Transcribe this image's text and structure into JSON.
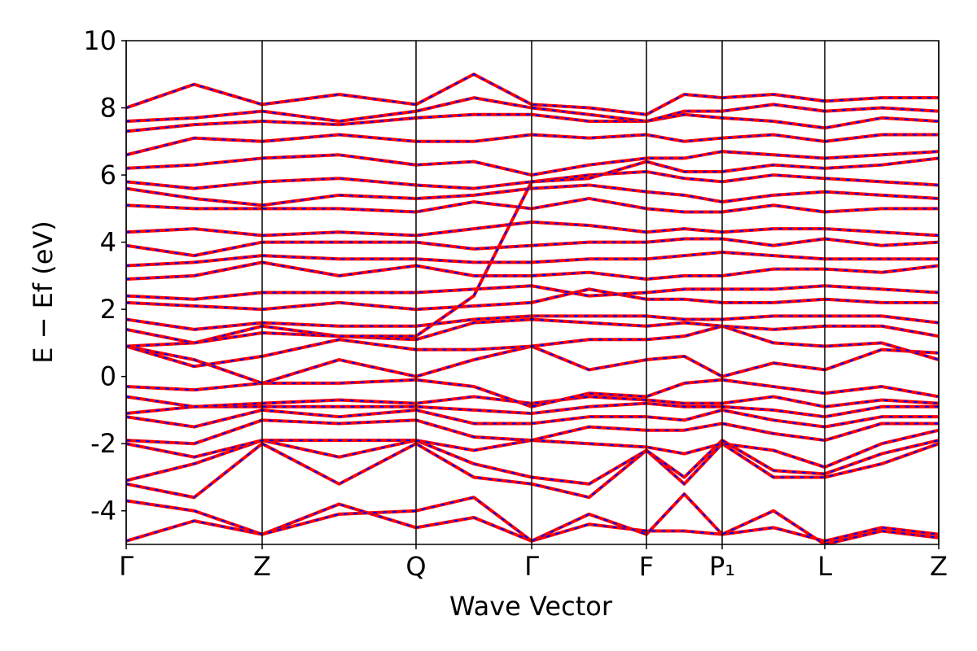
{
  "chart_data": {
    "type": "line",
    "x_label": "Wave Vector",
    "y_label": "E − Ef (eV)",
    "x": [
      0,
      0.835,
      1.67,
      2.615,
      3.56,
      4.27,
      4.98,
      5.685,
      6.39,
      6.855,
      7.32,
      7.95,
      8.58,
      9.28,
      9.98
    ],
    "xlim": [
      0,
      9.98
    ],
    "xticks": [
      {
        "value": 0,
        "label": "Γ"
      },
      {
        "value": 1.67,
        "label": "Z"
      },
      {
        "value": 3.56,
        "label": "Q"
      },
      {
        "value": 4.98,
        "label": "Γ"
      },
      {
        "value": 6.39,
        "label": "F"
      },
      {
        "value": 7.32,
        "label": "P₁"
      },
      {
        "value": 8.58,
        "label": "L"
      },
      {
        "value": 9.98,
        "label": "Z"
      }
    ],
    "ylim": [
      -5,
      10
    ],
    "yticks": [
      -4,
      -2,
      0,
      2,
      4,
      6,
      8,
      10
    ],
    "line_color": "#ff0000",
    "dash_color": "#0000ff",
    "series": [
      {
        "values": [
          -4.9,
          -4.3,
          -4.7,
          -3.8,
          -4.5,
          -4.2,
          -4.9,
          -4.4,
          -4.6,
          -4.6,
          -4.7,
          -4.5,
          -4.9,
          -4.5,
          -4.7
        ]
      },
      {
        "values": [
          -3.7,
          -4.0,
          -4.7,
          -4.1,
          -4.0,
          -3.6,
          -4.9,
          -4.1,
          -4.7,
          -3.5,
          -4.7,
          -4.0,
          -5.0,
          -4.6,
          -4.8
        ]
      },
      {
        "values": [
          -3.2,
          -3.6,
          -2.0,
          -3.2,
          -2.0,
          -3.0,
          -3.2,
          -3.6,
          -2.2,
          -3.2,
          -2.0,
          -3.0,
          -3.0,
          -2.6,
          -2.0
        ]
      },
      {
        "values": [
          -3.1,
          -2.6,
          -1.9,
          -2.4,
          -1.9,
          -2.6,
          -3.0,
          -3.2,
          -2.2,
          -3.0,
          -1.9,
          -2.8,
          -2.9,
          -2.3,
          -1.9
        ]
      },
      {
        "values": [
          -2.0,
          -2.4,
          -1.9,
          -1.9,
          -1.9,
          -2.2,
          -1.9,
          -2.0,
          -2.1,
          -2.3,
          -2.0,
          -2.2,
          -2.7,
          -2.0,
          -1.6
        ]
      },
      {
        "values": [
          -1.9,
          -2.0,
          -1.3,
          -1.4,
          -1.3,
          -1.8,
          -1.9,
          -1.5,
          -1.6,
          -1.6,
          -1.4,
          -1.7,
          -1.9,
          -1.4,
          -1.4
        ]
      },
      {
        "values": [
          -1.2,
          -1.5,
          -1.0,
          -1.2,
          -1.0,
          -1.4,
          -1.4,
          -1.2,
          -1.2,
          -1.3,
          -1.0,
          -1.3,
          -1.5,
          -1.2,
          -1.2
        ]
      },
      {
        "values": [
          -1.1,
          -0.9,
          -0.9,
          -0.9,
          -0.9,
          -1.0,
          -1.1,
          -0.9,
          -0.8,
          -0.9,
          -0.9,
          -1.0,
          -1.2,
          -0.9,
          -0.9
        ]
      },
      {
        "values": [
          -0.6,
          -0.9,
          -0.8,
          -0.7,
          -0.8,
          -0.6,
          -0.8,
          -0.6,
          -0.7,
          -0.8,
          -0.8,
          -0.6,
          -0.9,
          -0.7,
          -0.8
        ]
      },
      {
        "values": [
          -0.3,
          -0.4,
          -0.2,
          -0.2,
          -0.1,
          -0.3,
          -0.9,
          -0.5,
          -0.6,
          -0.2,
          -0.1,
          -0.3,
          -0.5,
          -0.3,
          -0.6
        ]
      },
      {
        "values": [
          0.9,
          0.5,
          -0.2,
          0.5,
          0.0,
          0.5,
          0.9,
          0.2,
          0.5,
          0.6,
          0.0,
          0.4,
          0.2,
          0.8,
          0.7
        ]
      },
      {
        "values": [
          0.9,
          0.3,
          0.6,
          1.1,
          0.8,
          0.8,
          0.9,
          1.1,
          1.1,
          1.2,
          1.5,
          1.0,
          0.9,
          1.0,
          0.5
        ]
      },
      {
        "values": [
          1.4,
          1.0,
          1.5,
          1.2,
          1.1,
          1.6,
          1.7,
          1.6,
          1.5,
          1.6,
          1.5,
          1.4,
          1.5,
          1.5,
          1.2
        ]
      },
      {
        "values": [
          1.7,
          1.4,
          1.6,
          1.5,
          1.5,
          1.7,
          1.8,
          1.8,
          1.8,
          1.7,
          1.7,
          1.8,
          1.8,
          1.8,
          1.6
        ]
      },
      {
        "values": [
          2.2,
          2.1,
          2.0,
          2.2,
          2.0,
          2.1,
          2.2,
          2.6,
          2.3,
          2.3,
          2.2,
          2.2,
          2.3,
          2.2,
          2.2
        ]
      },
      {
        "values": [
          2.4,
          2.3,
          2.5,
          2.5,
          2.5,
          2.6,
          2.7,
          2.4,
          2.5,
          2.6,
          2.6,
          2.6,
          2.7,
          2.6,
          2.5
        ]
      },
      {
        "values": [
          2.9,
          3.0,
          3.4,
          3.0,
          3.3,
          3.0,
          3.0,
          3.1,
          2.9,
          3.0,
          3.0,
          3.2,
          3.2,
          3.1,
          3.3
        ]
      },
      {
        "values": [
          3.3,
          3.4,
          3.6,
          3.5,
          3.5,
          3.4,
          3.4,
          3.5,
          3.5,
          3.6,
          3.7,
          3.6,
          3.5,
          3.5,
          3.5
        ]
      },
      {
        "values": [
          3.9,
          3.6,
          4.0,
          4.0,
          4.0,
          3.8,
          3.9,
          4.0,
          4.0,
          4.1,
          4.1,
          3.9,
          4.1,
          3.9,
          4.0
        ]
      },
      {
        "values": [
          4.3,
          4.4,
          4.2,
          4.3,
          4.2,
          4.4,
          4.6,
          4.5,
          4.3,
          4.4,
          4.3,
          4.4,
          4.4,
          4.3,
          4.2
        ]
      },
      {
        "values": [
          5.1,
          5.0,
          5.0,
          5.0,
          4.9,
          5.2,
          5.0,
          5.3,
          5.0,
          4.9,
          4.9,
          5.1,
          4.9,
          5.0,
          5.0
        ]
      },
      {
        "values": [
          5.6,
          5.3,
          5.1,
          5.4,
          5.3,
          5.4,
          5.6,
          5.7,
          5.5,
          5.4,
          5.2,
          5.4,
          5.5,
          5.4,
          5.3
        ]
      },
      {
        "values": [
          5.8,
          5.6,
          5.8,
          5.9,
          5.7,
          5.6,
          5.8,
          6.0,
          6.1,
          5.9,
          5.8,
          6.0,
          5.9,
          5.8,
          5.7
        ]
      },
      {
        "values": [
          6.2,
          6.3,
          6.5,
          6.6,
          6.3,
          6.4,
          6.0,
          6.3,
          6.5,
          6.5,
          6.7,
          6.6,
          6.5,
          6.6,
          6.7
        ]
      },
      {
        "values": [
          6.6,
          7.1,
          7.0,
          7.2,
          7.0,
          7.0,
          7.2,
          7.1,
          7.2,
          7.0,
          7.1,
          7.2,
          7.0,
          7.2,
          7.2
        ]
      },
      {
        "values": [
          7.3,
          7.5,
          7.6,
          7.5,
          7.7,
          7.8,
          7.8,
          7.6,
          7.6,
          7.8,
          7.7,
          7.6,
          7.4,
          7.7,
          7.6
        ]
      },
      {
        "values": [
          7.6,
          7.7,
          7.9,
          7.6,
          7.9,
          8.3,
          8.0,
          7.8,
          7.6,
          7.9,
          7.9,
          8.1,
          7.9,
          8.0,
          7.9
        ]
      },
      {
        "values": [
          8.0,
          8.7,
          8.1,
          8.4,
          8.1,
          9.0,
          8.1,
          8.0,
          7.8,
          8.4,
          8.3,
          8.4,
          8.2,
          8.3,
          8.3
        ]
      },
      {
        "values": [
          0.9,
          1.0,
          1.3,
          1.2,
          1.2,
          2.4,
          5.8,
          5.9,
          6.4,
          6.1,
          6.1,
          6.3,
          6.2,
          6.3,
          6.5
        ]
      }
    ]
  }
}
